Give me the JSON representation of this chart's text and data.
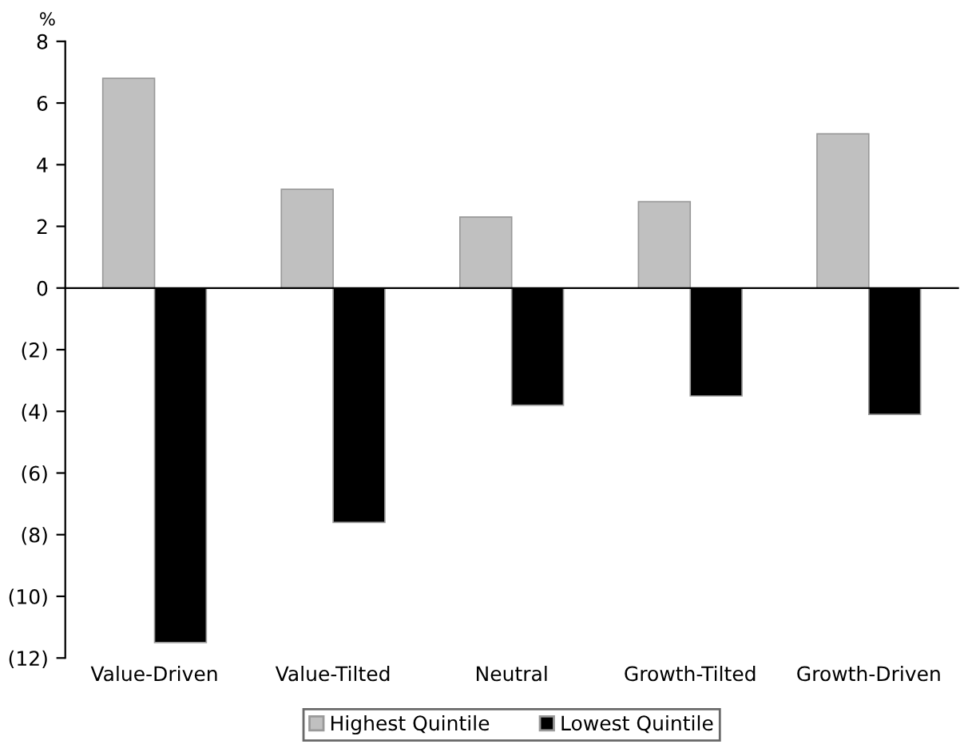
{
  "chart_data": {
    "type": "bar",
    "ylabel": "%",
    "categories": [
      "Value-Driven",
      "Value-Tilted",
      "Neutral",
      "Growth-Tilted",
      "Growth-Driven"
    ],
    "series": [
      {
        "name": "Highest Quintile",
        "color": "#c0c0c0",
        "values": [
          6.8,
          3.2,
          2.3,
          2.8,
          5.0
        ]
      },
      {
        "name": "Lowest Quintile",
        "color": "#000000",
        "values": [
          -11.5,
          -7.6,
          -3.8,
          -3.5,
          -4.1
        ]
      }
    ],
    "ylim": [
      -12,
      8
    ],
    "yticks": [
      {
        "value": -12,
        "label": "(12)"
      },
      {
        "value": -10,
        "label": "(10)"
      },
      {
        "value": -8,
        "label": "(8)"
      },
      {
        "value": -6,
        "label": "(6)"
      },
      {
        "value": -4,
        "label": "(4)"
      },
      {
        "value": -2,
        "label": "(2)"
      },
      0,
      2,
      4,
      6,
      8
    ],
    "legend": "bottom"
  }
}
